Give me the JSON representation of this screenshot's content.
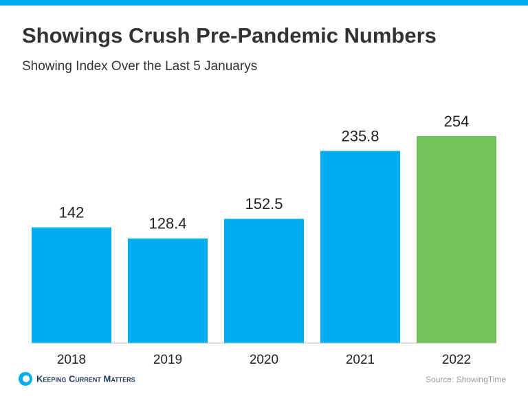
{
  "chart_data": {
    "type": "bar",
    "title": "Showings Crush Pre-Pandemic Numbers",
    "subtitle": "Showing Index Over the Last 5 Januarys",
    "categories": [
      "2018",
      "2019",
      "2020",
      "2021",
      "2022"
    ],
    "values": [
      142,
      128.4,
      152.5,
      235.8,
      254
    ],
    "colors": [
      "#00aeef",
      "#00aeef",
      "#00aeef",
      "#00aeef",
      "#72c35a"
    ],
    "source": "Source: ShowingTime",
    "brand": "Keeping Current Matters"
  }
}
